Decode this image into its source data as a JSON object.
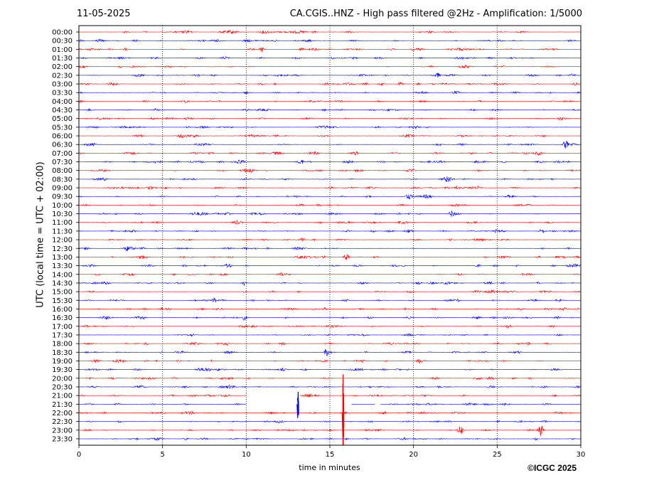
{
  "header": {
    "date": "11-05-2025",
    "title": "CA.CGIS..HNZ - High pass filtered @2Hz - Amplification: 1/5000"
  },
  "footer": {
    "copyright": "©ICGC 2025"
  },
  "chart_data": {
    "type": "line",
    "title": "CA.CGIS..HNZ - High pass filtered @2Hz - Amplification: 1/5000",
    "xlabel": "time in minutes",
    "ylabel": "UTC (local time = UTC + 02:00)",
    "xlim": [
      0,
      30
    ],
    "xticks": [
      0,
      5,
      10,
      15,
      20,
      25,
      30
    ],
    "vertical_gridlines": [
      5,
      10,
      15,
      20,
      25
    ],
    "grid_style": "dotted",
    "trace_colors": [
      "#ff0000",
      "#0000ff"
    ],
    "rows": [
      "00:00",
      "00:30",
      "01:00",
      "01:30",
      "02:00",
      "02:30",
      "03:00",
      "03:30",
      "04:00",
      "04:30",
      "05:00",
      "05:30",
      "06:00",
      "06:30",
      "07:00",
      "07:30",
      "08:00",
      "08:30",
      "09:00",
      "09:30",
      "10:00",
      "10:30",
      "11:00",
      "11:30",
      "12:00",
      "12:30",
      "13:00",
      "13:30",
      "14:00",
      "14:30",
      "15:00",
      "15:30",
      "16:00",
      "16:30",
      "17:00",
      "17:30",
      "18:00",
      "18:30",
      "19:00",
      "19:30",
      "20:00",
      "20:30",
      "21:00",
      "21:30",
      "22:00",
      "22:30",
      "23:00",
      "23:30"
    ],
    "events": [
      {
        "row": "01:00",
        "minute": 10.9,
        "amplitude": 0.35
      },
      {
        "row": "03:00",
        "minute": 19.2,
        "amplitude": 0.25
      },
      {
        "row": "06:30",
        "minute": 29.1,
        "amplitude": 0.5
      },
      {
        "row": "07:30",
        "minute": 13.3,
        "amplitude": 0.3
      },
      {
        "row": "09:30",
        "minute": 19.7,
        "amplitude": 0.3
      },
      {
        "row": "10:30",
        "minute": 22.3,
        "amplitude": 0.25
      },
      {
        "row": "13:00",
        "minute": 16.0,
        "amplitude": 0.4
      },
      {
        "row": "13:30",
        "minute": 8.9,
        "amplitude": 0.3
      },
      {
        "row": "14:30",
        "minute": 9.9,
        "amplitude": 0.35
      },
      {
        "row": "15:30",
        "minute": 8.1,
        "amplitude": 0.3
      },
      {
        "row": "16:30",
        "minute": 9.9,
        "amplitude": 0.3
      },
      {
        "row": "18:30",
        "minute": 14.8,
        "amplitude": 0.35
      },
      {
        "row": "23:00",
        "minute": 22.8,
        "amplitude": 0.7
      },
      {
        "row": "23:00",
        "minute": 27.6,
        "amplitude": 0.7
      }
    ],
    "spikes": [
      {
        "row": "21:30",
        "minute": 13.1,
        "amplitude": 1.6
      },
      {
        "row": "22:00",
        "minute": 15.8,
        "amplitude": 5.0
      }
    ],
    "gaps": [
      {
        "row": "21:00",
        "start": 10.0,
        "end": 13.2
      },
      {
        "row": "21:30",
        "start": 10.0,
        "end": 16.3
      },
      {
        "row": "21:30",
        "start": 17.7,
        "end": 18.0
      }
    ]
  }
}
